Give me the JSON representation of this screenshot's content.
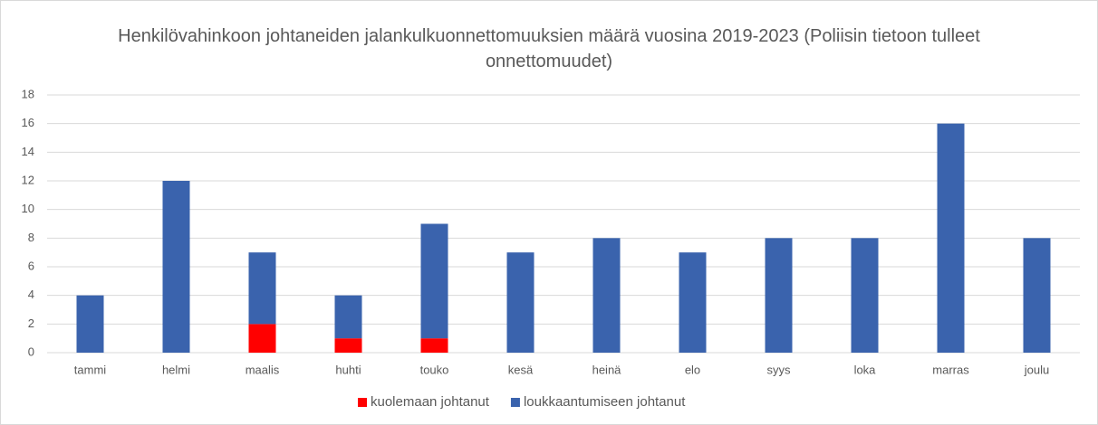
{
  "chart_data": {
    "type": "stacked_bar",
    "title": "Henkilövahinkoon johtaneiden jalankulkuonnettomuuksien määrä vuosina 2019-2023 (Poliisin tietoon tulleet onnettomuudet)",
    "categories": [
      "tammi",
      "helmi",
      "maalis",
      "huhti",
      "touko",
      "kesä",
      "heinä",
      "elo",
      "syys",
      "loka",
      "marras",
      "joulu"
    ],
    "series": [
      {
        "name": "kuolemaan johtanut",
        "color": "#ff0000",
        "values": [
          0,
          0,
          2,
          1,
          1,
          0,
          0,
          0,
          0,
          0,
          0,
          0
        ]
      },
      {
        "name": "loukkaantumiseen johtanut",
        "color": "#3a63ad",
        "values": [
          4,
          12,
          5,
          3,
          8,
          7,
          8,
          7,
          8,
          8,
          16,
          8
        ]
      }
    ],
    "ylim": [
      0,
      18
    ],
    "yticks": [
      0,
      2,
      4,
      6,
      8,
      10,
      12,
      14,
      16,
      18
    ],
    "grid": true,
    "legend": "bottom"
  }
}
